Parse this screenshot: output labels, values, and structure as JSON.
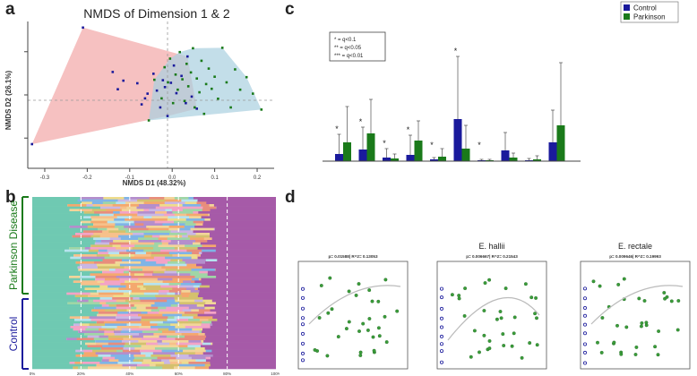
{
  "panel_labels": {
    "a": "a",
    "b": "b",
    "c": "c",
    "d": "d"
  },
  "panel_a": {
    "title": "NMDS of Dimension 1 & 2",
    "xlabel": "NMDS D1 (48.32%)",
    "ylabel": "NMDS D2 (26.1%)",
    "xticks": [
      "-0.3",
      "-0.2",
      "-0.1",
      "0.0",
      "0.1",
      "0.2"
    ]
  },
  "panel_b": {
    "group_top": "Parkinson Disease",
    "group_bottom": "Control",
    "xticks": [
      "0%",
      "20%",
      "40%",
      "60%",
      "80%",
      "100%"
    ]
  },
  "legend": {
    "items": [
      "Control",
      "Parkinson"
    ]
  },
  "sig_legend": {
    "lines": [
      "* = q<0.1",
      "** = q<0.05",
      "*** = q<0.01"
    ]
  },
  "panel_d": {
    "plot_titles": [
      "",
      "E. hallii",
      "E. rectale"
    ],
    "stats": [
      "p= 0.01588| R^2= 0.13053",
      "p= 0.006667| R^2= 0.21543",
      "p= 0.009646| R^2= 0.19993"
    ]
  },
  "colors": {
    "control": "#1a1a9c",
    "parkinson": "#1a7a1a",
    "control_hull": "#f4b6b6",
    "parkinson_hull": "#a9d0e0",
    "scatter_green": "#3a9c3a"
  },
  "chart_data": [
    {
      "type": "scatter",
      "title": "NMDS of Dimension 1 & 2",
      "xlabel": "NMDS D1 (48.32%)",
      "ylabel": "NMDS D2 (26.1%)",
      "xlim": [
        -0.34,
        0.24
      ],
      "ylim": [
        -0.17,
        0.17
      ],
      "series": [
        {
          "name": "Control",
          "points": [
            [
              -0.21,
              0.156
            ],
            [
              -0.33,
              -0.114
            ],
            [
              -0.14,
              0.053
            ],
            [
              -0.128,
              0.013
            ],
            [
              -0.115,
              0.033
            ],
            [
              -0.082,
              0.027
            ],
            [
              -0.072,
              -0.022
            ],
            [
              -0.064,
              -0.008
            ],
            [
              -0.058,
              0.003
            ],
            [
              -0.044,
              0.049
            ],
            [
              -0.036,
              0.01
            ],
            [
              -0.028,
              -0.029
            ],
            [
              -0.022,
              0.034
            ],
            [
              -0.017,
              0.018
            ],
            [
              -0.011,
              -0.049
            ],
            [
              -0.003,
              0.028
            ],
            [
              0.004,
              0.068
            ],
            [
              0.01,
              0.004
            ],
            [
              0.022,
              0.044
            ],
            [
              0.032,
              -0.019
            ],
            [
              0.036,
              0.089
            ],
            [
              0.046,
              -0.004
            ],
            [
              0.058,
              -0.032
            ]
          ]
        },
        {
          "name": "Parkinson",
          "points": [
            [
              -0.055,
              -0.059
            ],
            [
              -0.042,
              0.035
            ],
            [
              -0.025,
              -0.008
            ],
            [
              -0.018,
              0.064
            ],
            [
              -0.01,
              0.029
            ],
            [
              -0.005,
              0.084
            ],
            [
              0.002,
              -0.019
            ],
            [
              0.008,
              0.047
            ],
            [
              0.013,
              0.012
            ],
            [
              0.018,
              0.099
            ],
            [
              0.024,
              0.036
            ],
            [
              0.029,
              -0.014
            ],
            [
              0.034,
              0.072
            ],
            [
              0.038,
              0.02
            ],
            [
              0.044,
              0.052
            ],
            [
              0.049,
              0.108
            ],
            [
              0.053,
              -0.029
            ],
            [
              0.058,
              0.038
            ],
            [
              0.064,
              0.006
            ],
            [
              0.069,
              0.079
            ],
            [
              0.075,
              -0.044
            ],
            [
              0.08,
              0.025
            ],
            [
              0.086,
              0.061
            ],
            [
              0.093,
              0.014
            ],
            [
              0.1,
              0.042
            ],
            [
              0.108,
              -0.009
            ],
            [
              0.118,
              0.109
            ],
            [
              0.128,
              0.029
            ],
            [
              0.138,
              -0.029
            ],
            [
              0.148,
              0.059
            ],
            [
              0.16,
              0.012
            ],
            [
              0.175,
              0.041
            ],
            [
              0.19,
              0.003
            ],
            [
              0.21,
              -0.034
            ]
          ]
        }
      ]
    },
    {
      "type": "bar",
      "series": [
        {
          "name": "Control",
          "values": [
            8,
            13,
            4,
            7,
            2,
            47,
            1,
            12,
            1,
            21
          ],
          "errors": [
            22,
            25,
            10,
            22,
            2,
            70,
            1,
            20,
            2,
            36
          ]
        },
        {
          "name": "Parkinson",
          "values": [
            21,
            31,
            3,
            23,
            5,
            14,
            1,
            4,
            2,
            40
          ],
          "errors": [
            40,
            38,
            5,
            22,
            9,
            26,
            1,
            5,
            4,
            70
          ]
        }
      ],
      "significance": [
        "*",
        "*",
        "*",
        "*",
        "*",
        "*",
        "*",
        "",
        "",
        ""
      ],
      "ylim": [
        0,
        140
      ]
    }
  ]
}
